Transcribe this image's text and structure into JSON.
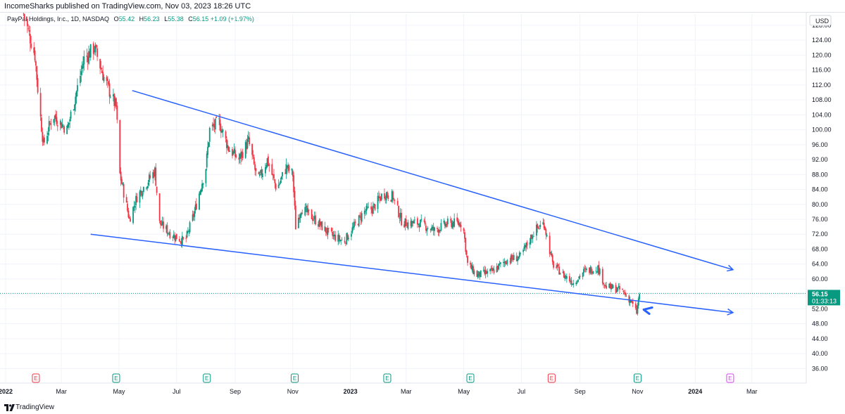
{
  "header": {
    "published": "IncomeSharks published on TradingView.com, Nov 03, 2023 18:26 UTC"
  },
  "legend": {
    "symbol": "PayPal Holdings, Inc., 1D, NASDAQ",
    "o_label": "O",
    "o": "55.42",
    "h_label": "H",
    "h": "56.23",
    "l_label": "L",
    "l": "55.38",
    "c_label": "C",
    "c": "56.15",
    "change": "+1.09 (+1.97%)"
  },
  "price_scale": {
    "currency": "USD",
    "last_price": "56.15",
    "countdown": "01:33:13"
  },
  "footer": {
    "brand": "TradingView"
  },
  "colors": {
    "up": "#089981",
    "down": "#f23645",
    "trend": "#2962ff",
    "earnings_red": "#f23645",
    "earnings_green": "#089981",
    "earnings_future": "#e040fb"
  },
  "chart_data": {
    "type": "candlestick",
    "ylim": [
      34,
      131
    ],
    "yticks": [
      128,
      124,
      120,
      116,
      112,
      108,
      104,
      100,
      96,
      92,
      88,
      84,
      80,
      76,
      72,
      68,
      64,
      60,
      56,
      52,
      48,
      44,
      40,
      36
    ],
    "ytick_labels": [
      "128.00",
      "124.00",
      "120.00",
      "116.00",
      "112.00",
      "108.00",
      "104.00",
      "100.00",
      "96.00",
      "92.00",
      "88.00",
      "84.00",
      "80.00",
      "76.00",
      "72.00",
      "68.00",
      "64.00",
      "60.00",
      "56.00",
      "52.00",
      "48.00",
      "44.00",
      "40.00",
      "36.00"
    ],
    "xlim": [
      "2022-01-01",
      "2024-03-31"
    ],
    "xticks": [
      {
        "date": "2022-01-01",
        "label": "2022"
      },
      {
        "date": "2022-03-01",
        "label": "Mar"
      },
      {
        "date": "2022-05-01",
        "label": "May"
      },
      {
        "date": "2022-07-01",
        "label": "Jul"
      },
      {
        "date": "2022-09-01",
        "label": "Sep"
      },
      {
        "date": "2022-11-01",
        "label": "Nov"
      },
      {
        "date": "2023-01-01",
        "label": "2023"
      },
      {
        "date": "2023-03-01",
        "label": "Mar"
      },
      {
        "date": "2023-05-01",
        "label": "May"
      },
      {
        "date": "2023-07-01",
        "label": "Jul"
      },
      {
        "date": "2023-09-01",
        "label": "Sep"
      },
      {
        "date": "2023-11-01",
        "label": "Nov"
      },
      {
        "date": "2024-01-01",
        "label": "2024"
      },
      {
        "date": "2024-03-01",
        "label": "Mar"
      }
    ],
    "price_path": [
      [
        "2022-01-20",
        131
      ],
      [
        "2022-02-01",
        120
      ],
      [
        "2022-02-05",
        108
      ],
      [
        "2022-02-10",
        96
      ],
      [
        "2022-02-20",
        104
      ],
      [
        "2022-03-07",
        100
      ],
      [
        "2022-03-15",
        108
      ],
      [
        "2022-03-25",
        119
      ],
      [
        "2022-04-05",
        122
      ],
      [
        "2022-04-15",
        114
      ],
      [
        "2022-04-28",
        106
      ],
      [
        "2022-05-02",
        88
      ],
      [
        "2022-05-12",
        76
      ],
      [
        "2022-05-20",
        82
      ],
      [
        "2022-06-08",
        89
      ],
      [
        "2022-06-13",
        75
      ],
      [
        "2022-06-25",
        72
      ],
      [
        "2022-07-10",
        70
      ],
      [
        "2022-07-20",
        78
      ],
      [
        "2022-08-01",
        90
      ],
      [
        "2022-08-05",
        100
      ],
      [
        "2022-08-15",
        102
      ],
      [
        "2022-08-25",
        95
      ],
      [
        "2022-09-05",
        92
      ],
      [
        "2022-09-15",
        97
      ],
      [
        "2022-09-25",
        86
      ],
      [
        "2022-10-05",
        92
      ],
      [
        "2022-10-15",
        84
      ],
      [
        "2022-10-25",
        90
      ],
      [
        "2022-11-01",
        88
      ],
      [
        "2022-11-04",
        74
      ],
      [
        "2022-11-10",
        79
      ],
      [
        "2022-11-20",
        77
      ],
      [
        "2022-12-10",
        72
      ],
      [
        "2022-12-25",
        70
      ],
      [
        "2023-01-05",
        74
      ],
      [
        "2023-01-15",
        78
      ],
      [
        "2023-01-25",
        79
      ],
      [
        "2023-02-05",
        83
      ],
      [
        "2023-02-15",
        82
      ],
      [
        "2023-02-25",
        75
      ],
      [
        "2023-03-15",
        75
      ],
      [
        "2023-03-31",
        73
      ],
      [
        "2023-04-15",
        75
      ],
      [
        "2023-04-30",
        75
      ],
      [
        "2023-05-05",
        64
      ],
      [
        "2023-05-15",
        61
      ],
      [
        "2023-05-31",
        62
      ],
      [
        "2023-06-15",
        65
      ],
      [
        "2023-06-30",
        66
      ],
      [
        "2023-07-15",
        73
      ],
      [
        "2023-07-25",
        75
      ],
      [
        "2023-08-03",
        64
      ],
      [
        "2023-08-15",
        61
      ],
      [
        "2023-08-25",
        59
      ],
      [
        "2023-09-05",
        62
      ],
      [
        "2023-09-20",
        63
      ],
      [
        "2023-09-28",
        58
      ],
      [
        "2023-10-15",
        57
      ],
      [
        "2023-10-25",
        54
      ],
      [
        "2023-10-31",
        51
      ],
      [
        "2023-11-03",
        56.15
      ]
    ],
    "earnings_markers": [
      {
        "date": "2022-02-02",
        "label": "E",
        "color": "red"
      },
      {
        "date": "2022-04-28",
        "label": "E",
        "color": "green"
      },
      {
        "date": "2022-08-02",
        "label": "E",
        "color": "green"
      },
      {
        "date": "2022-11-03",
        "label": "E",
        "color": "green"
      },
      {
        "date": "2023-02-09",
        "label": "E",
        "color": "green"
      },
      {
        "date": "2023-05-08",
        "label": "E",
        "color": "green"
      },
      {
        "date": "2023-08-02",
        "label": "E",
        "color": "red"
      },
      {
        "date": "2023-11-01",
        "label": "E",
        "color": "green"
      },
      {
        "date": "2024-02-07",
        "label": "E",
        "color": "future"
      }
    ],
    "trendlines": [
      {
        "name": "upper",
        "from": [
          "2022-05-15",
          110.5
        ],
        "to": [
          "2024-02-10",
          62.5
        ],
        "arrow": true
      },
      {
        "name": "lower",
        "from": [
          "2022-04-01",
          72
        ],
        "to": [
          "2024-02-10",
          51
        ],
        "arrow": true
      }
    ],
    "pointer_arrow": {
      "date": "2023-11-03",
      "price": 51.8
    },
    "last_price_line": 56.15
  }
}
